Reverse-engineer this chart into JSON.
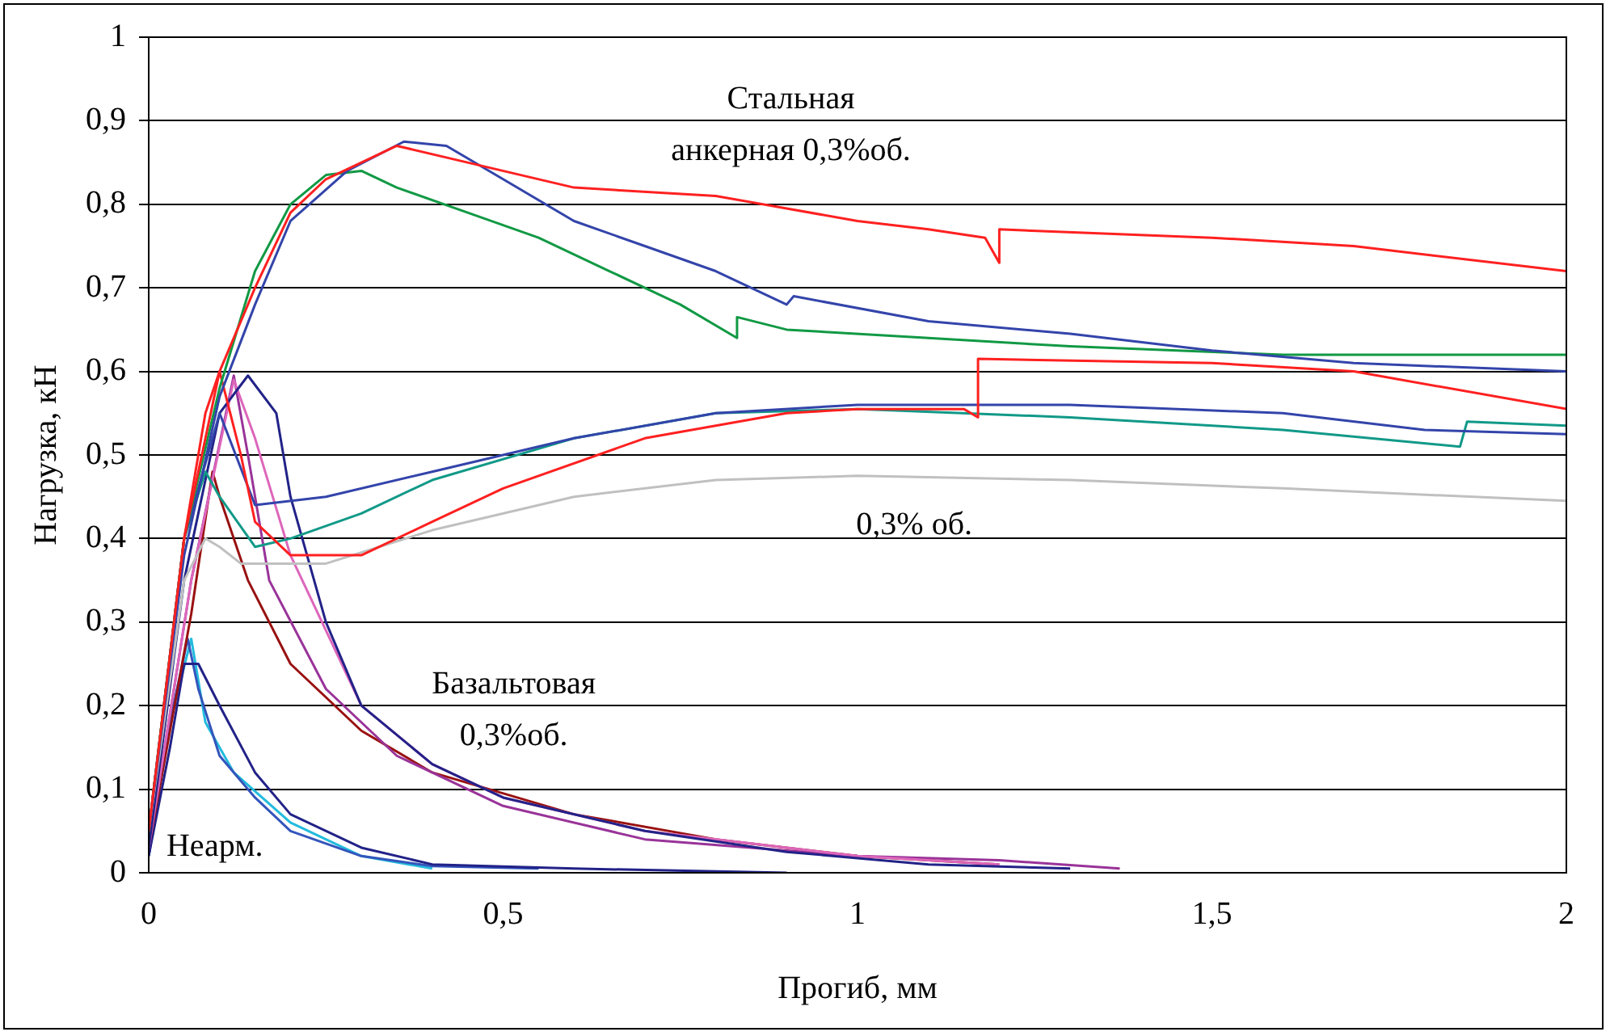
{
  "chart_data": {
    "type": "line",
    "xlabel": "Прогиб, мм",
    "ylabel": "Нагрузка, кН",
    "xlim": [
      0,
      2
    ],
    "xticks": [
      0,
      {
        "value": 0.5,
        "label": "0,5"
      },
      1,
      {
        "value": 1.5,
        "label": "1,5"
      },
      2
    ],
    "ylim": [
      0,
      1
    ],
    "yticks": [
      0,
      {
        "value": 0.1,
        "label": "0,1"
      },
      {
        "value": 0.2,
        "label": "0,2"
      },
      {
        "value": 0.3,
        "label": "0,3"
      },
      {
        "value": 0.4,
        "label": "0,4"
      },
      {
        "value": 0.5,
        "label": "0,5"
      },
      {
        "value": 0.6,
        "label": "0,6"
      },
      {
        "value": 0.7,
        "label": "0,7"
      },
      {
        "value": 0.8,
        "label": "0,8"
      },
      {
        "value": 0.9,
        "label": "0,9"
      },
      1
    ],
    "grid": "y",
    "legend": false,
    "marker": "none",
    "line_style": "solid",
    "annotations": [
      "Стальная\nанкерная 0,3%об.",
      "0,3% об.",
      "Базальтовая\n0,3%об.",
      "Неарм."
    ],
    "series": [
      {
        "color": "#ff2020",
        "x": [
          0,
          0.05,
          0.1,
          0.15,
          0.2,
          0.25,
          0.3,
          0.35,
          0.45,
          0.6,
          0.8,
          1.0,
          1.1,
          1.18,
          1.2,
          1.2,
          1.5,
          1.7,
          2
        ],
        "values": [
          0.05,
          0.4,
          0.6,
          0.7,
          0.79,
          0.83,
          0.85,
          0.87,
          0.85,
          0.82,
          0.81,
          0.78,
          0.77,
          0.76,
          0.73,
          0.77,
          0.76,
          0.75,
          0.72
        ]
      },
      {
        "color": "#3344aa",
        "x": [
          0,
          0.05,
          0.1,
          0.15,
          0.2,
          0.28,
          0.36,
          0.42,
          0.5,
          0.6,
          0.7,
          0.8,
          0.9,
          0.91,
          1.1,
          1.3,
          1.5,
          1.7,
          2
        ],
        "values": [
          0.05,
          0.38,
          0.57,
          0.68,
          0.78,
          0.84,
          0.875,
          0.87,
          0.83,
          0.78,
          0.75,
          0.72,
          0.68,
          0.69,
          0.66,
          0.645,
          0.625,
          0.61,
          0.6
        ]
      },
      {
        "color": "#119944",
        "x": [
          0,
          0.05,
          0.1,
          0.15,
          0.2,
          0.25,
          0.3,
          0.35,
          0.45,
          0.55,
          0.65,
          0.75,
          0.83,
          0.83,
          0.9,
          1.1,
          1.3,
          1.6,
          2
        ],
        "values": [
          0.05,
          0.4,
          0.58,
          0.72,
          0.8,
          0.835,
          0.84,
          0.82,
          0.79,
          0.76,
          0.72,
          0.68,
          0.64,
          0.665,
          0.65,
          0.64,
          0.63,
          0.62,
          0.62
        ]
      },
      {
        "color": "#ff2020",
        "x": [
          0,
          0.05,
          0.08,
          0.1,
          0.13,
          0.15,
          0.2,
          0.3,
          0.4,
          0.5,
          0.7,
          0.9,
          1.0,
          1.15,
          1.17,
          1.17,
          1.5,
          1.7,
          2
        ],
        "values": [
          0.05,
          0.4,
          0.55,
          0.6,
          0.5,
          0.42,
          0.38,
          0.38,
          0.42,
          0.46,
          0.52,
          0.55,
          0.555,
          0.555,
          0.545,
          0.615,
          0.61,
          0.6,
          0.555
        ]
      },
      {
        "color": "#3344aa",
        "x": [
          0,
          0.05,
          0.1,
          0.15,
          0.25,
          0.4,
          0.6,
          0.8,
          1.0,
          1.3,
          1.6,
          1.8,
          2
        ],
        "values": [
          0.05,
          0.4,
          0.55,
          0.44,
          0.45,
          0.48,
          0.52,
          0.55,
          0.56,
          0.56,
          0.55,
          0.53,
          0.525
        ]
      },
      {
        "color": "#119988",
        "x": [
          0,
          0.05,
          0.08,
          0.1,
          0.15,
          0.2,
          0.3,
          0.4,
          0.6,
          0.8,
          1.0,
          1.3,
          1.6,
          1.85,
          1.86,
          2
        ],
        "values": [
          0.05,
          0.4,
          0.48,
          0.45,
          0.39,
          0.4,
          0.43,
          0.47,
          0.52,
          0.55,
          0.555,
          0.545,
          0.53,
          0.51,
          0.54,
          0.535
        ]
      },
      {
        "color": "#c0c0c0",
        "x": [
          0,
          0.05,
          0.08,
          0.1,
          0.13,
          0.25,
          0.4,
          0.6,
          0.8,
          1.0,
          1.3,
          1.6,
          2
        ],
        "values": [
          0.05,
          0.35,
          0.4,
          0.39,
          0.37,
          0.37,
          0.41,
          0.45,
          0.47,
          0.475,
          0.47,
          0.46,
          0.445
        ]
      },
      {
        "color": "#222288",
        "x": [
          0,
          0.05,
          0.1,
          0.14,
          0.18,
          0.2,
          0.25,
          0.3,
          0.4,
          0.5,
          0.7,
          0.9,
          1.1,
          1.3
        ],
        "values": [
          0.03,
          0.35,
          0.55,
          0.595,
          0.55,
          0.45,
          0.3,
          0.2,
          0.13,
          0.09,
          0.05,
          0.025,
          0.01,
          0.005
        ]
      },
      {
        "color": "#dd66bb",
        "x": [
          0,
          0.06,
          0.12,
          0.15,
          0.2,
          0.3,
          0.4,
          0.5,
          0.7,
          1.0,
          1.2
        ],
        "values": [
          0.03,
          0.35,
          0.59,
          0.52,
          0.38,
          0.2,
          0.13,
          0.09,
          0.05,
          0.02,
          0.01
        ]
      },
      {
        "color": "#993399",
        "x": [
          0,
          0.06,
          0.12,
          0.14,
          0.17,
          0.25,
          0.35,
          0.5,
          0.7,
          1.0,
          1.2,
          1.37
        ],
        "values": [
          0.03,
          0.35,
          0.595,
          0.5,
          0.35,
          0.22,
          0.14,
          0.08,
          0.04,
          0.02,
          0.015,
          0.005
        ]
      },
      {
        "color": "#991111",
        "x": [
          0,
          0.06,
          0.09,
          0.1,
          0.14,
          0.2,
          0.3,
          0.4,
          0.6,
          0.8,
          1.0,
          1.2
        ],
        "values": [
          0.03,
          0.31,
          0.48,
          0.45,
          0.35,
          0.25,
          0.17,
          0.12,
          0.07,
          0.04,
          0.02,
          0.01
        ]
      },
      {
        "color": "#222288",
        "x": [
          0,
          0.03,
          0.05,
          0.07,
          0.1,
          0.15,
          0.2,
          0.3,
          0.4,
          0.6,
          0.9
        ],
        "values": [
          0.02,
          0.15,
          0.25,
          0.25,
          0.2,
          0.12,
          0.07,
          0.03,
          0.01,
          0.005,
          0
        ]
      },
      {
        "color": "#3355bb",
        "x": [
          0,
          0.03,
          0.055,
          0.07,
          0.1,
          0.15,
          0.2,
          0.3,
          0.4,
          0.55
        ],
        "values": [
          0.02,
          0.18,
          0.28,
          0.22,
          0.14,
          0.09,
          0.05,
          0.02,
          0.008,
          0.005
        ]
      },
      {
        "color": "#22bbdd",
        "x": [
          0,
          0.03,
          0.06,
          0.08,
          0.12,
          0.2,
          0.3,
          0.4
        ],
        "values": [
          0.02,
          0.18,
          0.28,
          0.18,
          0.12,
          0.06,
          0.02,
          0.005
        ]
      }
    ]
  }
}
